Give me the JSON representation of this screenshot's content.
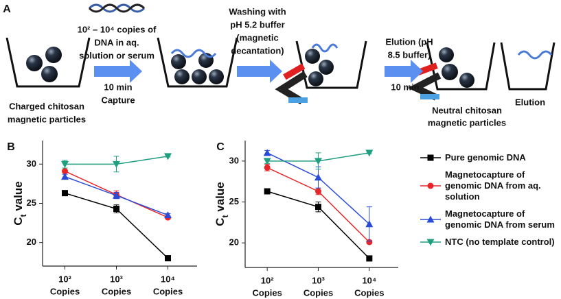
{
  "panel_a": {
    "label": "A",
    "dna_input": [
      "10² – 10⁴ copies of",
      "DNA in aq.",
      "solution or serum"
    ],
    "capture": [
      "10 min",
      "Capture"
    ],
    "charged_particles": [
      "Charged chitosan",
      "magnetic particles"
    ],
    "washing": [
      "Washing with",
      "pH 5.2 buffer",
      "(magnetic",
      "decantation)"
    ],
    "elution_buffer": [
      "Elution (pH",
      "8.5 buffer)"
    ],
    "elution_time": "10 min",
    "neutral_particles": [
      "Neutral chitosan",
      "magnetic particles"
    ],
    "elution": "Elution"
  },
  "legend": [
    {
      "name": "Pure genomic DNA",
      "color": "#000000",
      "marker": "square"
    },
    {
      "name": "Magnetocapture of genomic DNA from aq. solution",
      "color": "#e8262a",
      "marker": "circle"
    },
    {
      "name": "Magnetocapture of genomic DNA from serum",
      "color": "#2a4bd7",
      "marker": "triangle"
    },
    {
      "name": "NTC (no template control)",
      "color": "#1f9e80",
      "marker": "triangle-down"
    }
  ],
  "chart_data": [
    {
      "type": "line",
      "panel": "B",
      "y_label": [
        "C",
        "t",
        " value"
      ],
      "categories": [
        [
          "10²",
          "Copies"
        ],
        [
          "10³",
          "Copies"
        ],
        [
          "10⁴",
          "Copies"
        ]
      ],
      "ylim": [
        17,
        33
      ],
      "yticks": [
        20,
        25,
        30
      ],
      "series": [
        {
          "color": "#000000",
          "marker": "square",
          "values": [
            26.3,
            24.3,
            18.0
          ],
          "errors": [
            0.3,
            0.5,
            0.2
          ]
        },
        {
          "color": "#e8262a",
          "marker": "circle",
          "values": [
            29.1,
            26.1,
            23.2
          ],
          "errors": [
            0.4,
            0.5,
            0.2
          ]
        },
        {
          "color": "#2a4bd7",
          "marker": "triangle",
          "values": [
            28.4,
            26.0,
            23.5
          ],
          "errors": [
            0.3,
            0.4,
            0.2
          ]
        },
        {
          "color": "#1f9e80",
          "marker": "triangle-down",
          "values": [
            30.0,
            30.0,
            31.0
          ],
          "errors": [
            0.5,
            1.0,
            0.1
          ]
        }
      ]
    },
    {
      "type": "line",
      "panel": "C",
      "y_label": [
        "C",
        "t",
        " value"
      ],
      "categories": [
        [
          "10²",
          "Copies"
        ],
        [
          "10³",
          "Copies"
        ],
        [
          "10⁴",
          "Copies"
        ]
      ],
      "ylim": [
        17,
        32.5
      ],
      "yticks": [
        20,
        25,
        30
      ],
      "series": [
        {
          "color": "#000000",
          "marker": "square",
          "values": [
            26.3,
            24.4,
            18.1
          ],
          "errors": [
            0.3,
            0.6,
            0.2
          ]
        },
        {
          "color": "#e8262a",
          "marker": "circle",
          "values": [
            29.2,
            26.3,
            20.1
          ],
          "errors": [
            0.4,
            0.4,
            0.2
          ]
        },
        {
          "color": "#2a4bd7",
          "marker": "triangle",
          "values": [
            31.0,
            28.0,
            22.3
          ],
          "errors": [
            0.3,
            1.3,
            2.1
          ]
        },
        {
          "color": "#1f9e80",
          "marker": "triangle-down",
          "values": [
            30.0,
            30.0,
            31.0
          ],
          "errors": [
            0.3,
            1.0,
            0.1
          ]
        }
      ]
    }
  ]
}
